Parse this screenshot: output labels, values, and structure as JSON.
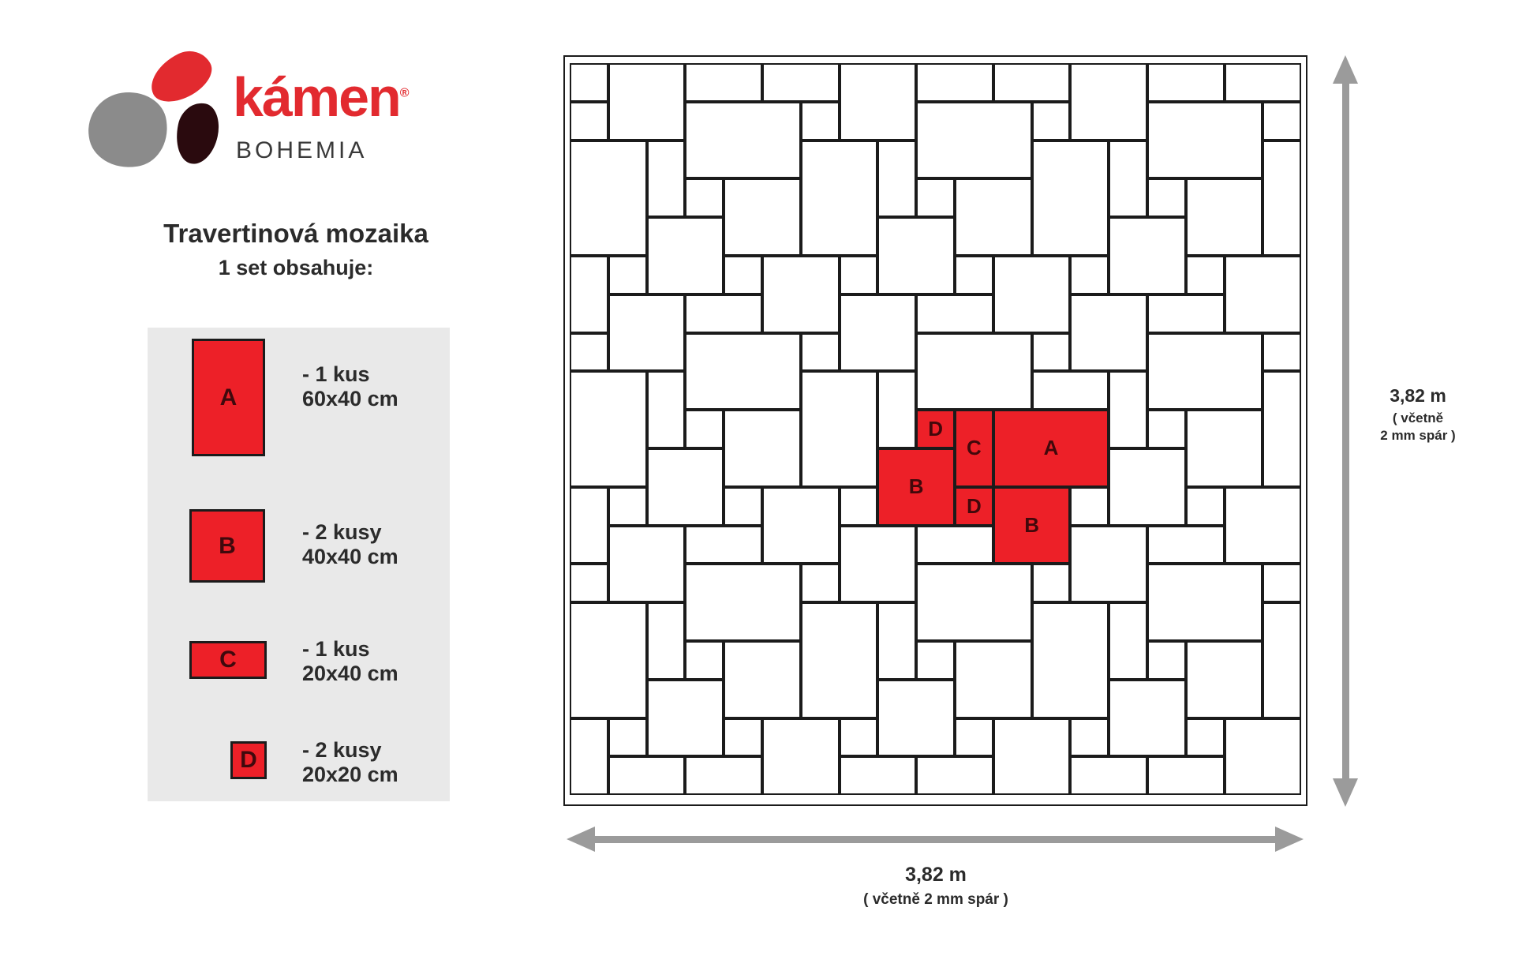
{
  "logo": {
    "brand": "kámen",
    "registered": "®",
    "sub": "BOHEMIA"
  },
  "title": "Travertinová mozaika",
  "subtitle": "1 set obsahuje:",
  "legend": {
    "items": [
      {
        "label": "A",
        "qty": "- 1 kus",
        "size": "60x40 cm"
      },
      {
        "label": "B",
        "qty": "- 2 kusy",
        "size": "40x40 cm"
      },
      {
        "label": "C",
        "qty": "- 1 kus",
        "size": "20x40 cm"
      },
      {
        "label": "D",
        "qty": "- 2 kusy",
        "size": "20x20 cm"
      }
    ]
  },
  "dimensions": {
    "right": {
      "value": "3,82 m",
      "note_line1": "( včetně",
      "note_line2": "2 mm spár )"
    },
    "bottom": {
      "value": "3,82 m",
      "note": "( včetně 2 mm spár )"
    }
  },
  "colors": {
    "red": "#ed2028",
    "grid": "#1b1b1b",
    "arrow": "#9b9b9b",
    "legend_bg": "#e9e9e9",
    "tile_label": "#42080b"
  },
  "mosaic": {
    "cols": 19,
    "rows": 19,
    "unit_cm": 20,
    "tiles": [
      [
        0,
        0,
        1,
        1
      ],
      [
        5,
        0,
        2,
        1
      ],
      [
        11,
        0,
        2,
        1
      ],
      [
        17,
        0,
        2,
        1
      ],
      [
        0,
        5,
        1,
        2
      ],
      [
        0,
        11,
        1,
        2
      ],
      [
        0,
        17,
        1,
        2
      ],
      [
        18,
        1,
        1,
        1
      ],
      [
        18,
        7,
        1,
        1
      ],
      [
        18,
        13,
        1,
        1
      ],
      [
        18,
        2,
        1,
        3
      ],
      [
        18,
        8,
        1,
        3
      ],
      [
        18,
        14,
        1,
        3
      ],
      [
        1,
        18,
        2,
        1
      ],
      [
        7,
        18,
        2,
        1
      ],
      [
        13,
        18,
        2,
        1
      ],
      [
        3,
        18,
        2,
        1
      ],
      [
        9,
        18,
        2,
        1
      ],
      [
        15,
        18,
        2,
        1
      ],
      [
        0,
        1,
        1,
        1
      ],
      [
        1,
        0,
        2,
        2
      ],
      [
        3,
        0,
        2,
        1
      ],
      [
        3,
        1,
        3,
        2
      ],
      [
        0,
        2,
        2,
        3
      ],
      [
        2,
        2,
        1,
        2
      ],
      [
        3,
        3,
        1,
        1
      ],
      [
        4,
        3,
        2,
        2
      ],
      [
        2,
        4,
        2,
        2
      ],
      [
        1,
        5,
        1,
        1
      ],
      [
        4,
        5,
        1,
        1
      ],
      [
        5,
        5,
        2,
        2
      ],
      [
        6,
        1,
        1,
        1
      ],
      [
        7,
        0,
        2,
        2
      ],
      [
        9,
        0,
        2,
        1
      ],
      [
        9,
        1,
        3,
        2
      ],
      [
        6,
        2,
        2,
        3
      ],
      [
        8,
        2,
        1,
        2
      ],
      [
        9,
        3,
        1,
        1
      ],
      [
        10,
        3,
        2,
        2
      ],
      [
        8,
        4,
        2,
        2
      ],
      [
        7,
        5,
        1,
        1
      ],
      [
        10,
        5,
        1,
        1
      ],
      [
        11,
        5,
        2,
        2
      ],
      [
        12,
        1,
        1,
        1
      ],
      [
        13,
        0,
        2,
        2
      ],
      [
        15,
        0,
        2,
        1
      ],
      [
        15,
        1,
        3,
        2
      ],
      [
        12,
        2,
        2,
        3
      ],
      [
        14,
        2,
        1,
        2
      ],
      [
        15,
        3,
        1,
        1
      ],
      [
        16,
        3,
        2,
        2
      ],
      [
        14,
        4,
        2,
        2
      ],
      [
        13,
        5,
        1,
        1
      ],
      [
        16,
        5,
        1,
        1
      ],
      [
        17,
        5,
        2,
        2
      ],
      [
        0,
        7,
        1,
        1
      ],
      [
        1,
        6,
        2,
        2
      ],
      [
        3,
        6,
        2,
        1
      ],
      [
        3,
        7,
        3,
        2
      ],
      [
        0,
        8,
        2,
        3
      ],
      [
        2,
        8,
        1,
        2
      ],
      [
        3,
        9,
        1,
        1
      ],
      [
        4,
        9,
        2,
        2
      ],
      [
        2,
        10,
        2,
        2
      ],
      [
        1,
        11,
        1,
        1
      ],
      [
        4,
        11,
        1,
        1
      ],
      [
        5,
        11,
        2,
        2
      ],
      [
        6,
        7,
        1,
        1
      ],
      [
        7,
        6,
        2,
        2
      ],
      [
        9,
        6,
        2,
        1
      ],
      [
        9,
        7,
        3,
        2
      ],
      [
        6,
        8,
        2,
        3
      ],
      [
        8,
        8,
        1,
        2
      ],
      [
        9,
        9,
        1,
        1,
        "D"
      ],
      [
        10,
        9,
        1,
        2,
        "C"
      ],
      [
        11,
        9,
        3,
        2,
        "A"
      ],
      [
        8,
        10,
        2,
        2,
        "B"
      ],
      [
        7,
        11,
        1,
        1
      ],
      [
        10,
        11,
        1,
        1,
        "D"
      ],
      [
        11,
        11,
        2,
        2,
        "B"
      ],
      [
        12,
        7,
        1,
        1
      ],
      [
        13,
        6,
        2,
        2
      ],
      [
        15,
        6,
        2,
        1
      ],
      [
        15,
        7,
        3,
        2
      ],
      [
        12,
        8,
        2,
        1
      ],
      [
        14,
        8,
        1,
        2
      ],
      [
        15,
        9,
        1,
        1
      ],
      [
        16,
        9,
        2,
        2
      ],
      [
        14,
        10,
        2,
        2
      ],
      [
        13,
        11,
        1,
        1
      ],
      [
        16,
        11,
        1,
        1
      ],
      [
        17,
        11,
        2,
        2
      ],
      [
        0,
        13,
        1,
        1
      ],
      [
        1,
        12,
        2,
        2
      ],
      [
        3,
        12,
        2,
        1
      ],
      [
        3,
        13,
        3,
        2
      ],
      [
        0,
        14,
        2,
        3
      ],
      [
        2,
        14,
        1,
        2
      ],
      [
        3,
        15,
        1,
        1
      ],
      [
        4,
        15,
        2,
        2
      ],
      [
        2,
        16,
        2,
        2
      ],
      [
        1,
        17,
        1,
        1
      ],
      [
        4,
        17,
        1,
        1
      ],
      [
        5,
        17,
        2,
        2
      ],
      [
        6,
        13,
        1,
        1
      ],
      [
        7,
        12,
        2,
        2
      ],
      [
        9,
        12,
        2,
        1
      ],
      [
        9,
        13,
        3,
        2
      ],
      [
        6,
        14,
        2,
        3
      ],
      [
        8,
        14,
        1,
        2
      ],
      [
        9,
        15,
        1,
        1
      ],
      [
        10,
        15,
        2,
        2
      ],
      [
        8,
        16,
        2,
        2
      ],
      [
        7,
        17,
        1,
        1
      ],
      [
        10,
        17,
        1,
        1
      ],
      [
        11,
        17,
        2,
        2
      ],
      [
        12,
        13,
        1,
        1
      ],
      [
        13,
        12,
        2,
        2
      ],
      [
        15,
        12,
        2,
        1
      ],
      [
        15,
        13,
        3,
        2
      ],
      [
        12,
        14,
        2,
        3
      ],
      [
        14,
        14,
        1,
        2
      ],
      [
        15,
        15,
        1,
        1
      ],
      [
        16,
        15,
        2,
        2
      ],
      [
        14,
        16,
        2,
        2
      ],
      [
        13,
        17,
        1,
        1
      ],
      [
        16,
        17,
        1,
        1
      ],
      [
        17,
        17,
        2,
        2
      ]
    ]
  }
}
